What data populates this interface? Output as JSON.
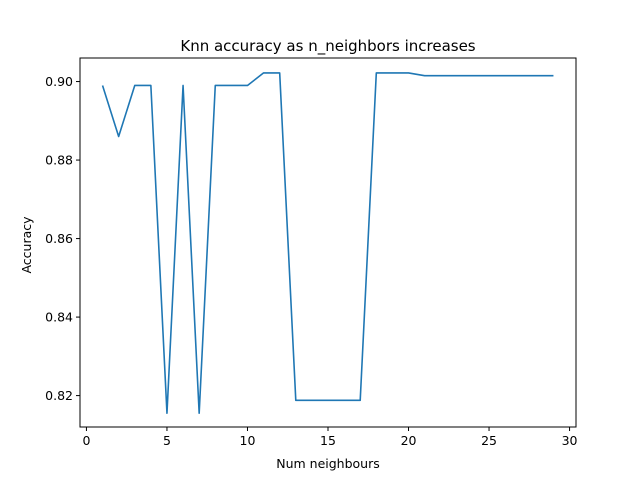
{
  "chart_data": {
    "type": "line",
    "title": "Knn accuracy as n_neighbors increases",
    "xlabel": "Num neighbours",
    "ylabel": "Accuracy",
    "xlim": [
      -0.4,
      30.4
    ],
    "ylim": [
      0.812,
      0.906
    ],
    "xticks": [
      0,
      5,
      10,
      15,
      20,
      25,
      30
    ],
    "xtick_labels": [
      "0",
      "5",
      "10",
      "15",
      "20",
      "25",
      "30"
    ],
    "yticks": [
      0.82,
      0.84,
      0.86,
      0.88,
      0.9
    ],
    "ytick_labels": [
      "0.82",
      "0.84",
      "0.86",
      "0.88",
      "0.90"
    ],
    "grid": false,
    "line_color": "#1f77b4",
    "series": [
      {
        "x": [
          1,
          2,
          3,
          4,
          5,
          6,
          7,
          8,
          9,
          10,
          11,
          12,
          13,
          14,
          15,
          16,
          17,
          18,
          19,
          20,
          21,
          22,
          23,
          24,
          25,
          26,
          27,
          28,
          29
        ],
        "values": [
          0.899,
          0.886,
          0.899,
          0.899,
          0.8155,
          0.899,
          0.8155,
          0.899,
          0.899,
          0.899,
          0.9022,
          0.9022,
          0.8188,
          0.8188,
          0.8188,
          0.8188,
          0.8188,
          0.9022,
          0.9022,
          0.9022,
          0.9015,
          0.9015,
          0.9015,
          0.9015,
          0.9015,
          0.9015,
          0.9015,
          0.9015,
          0.9015
        ]
      }
    ]
  }
}
